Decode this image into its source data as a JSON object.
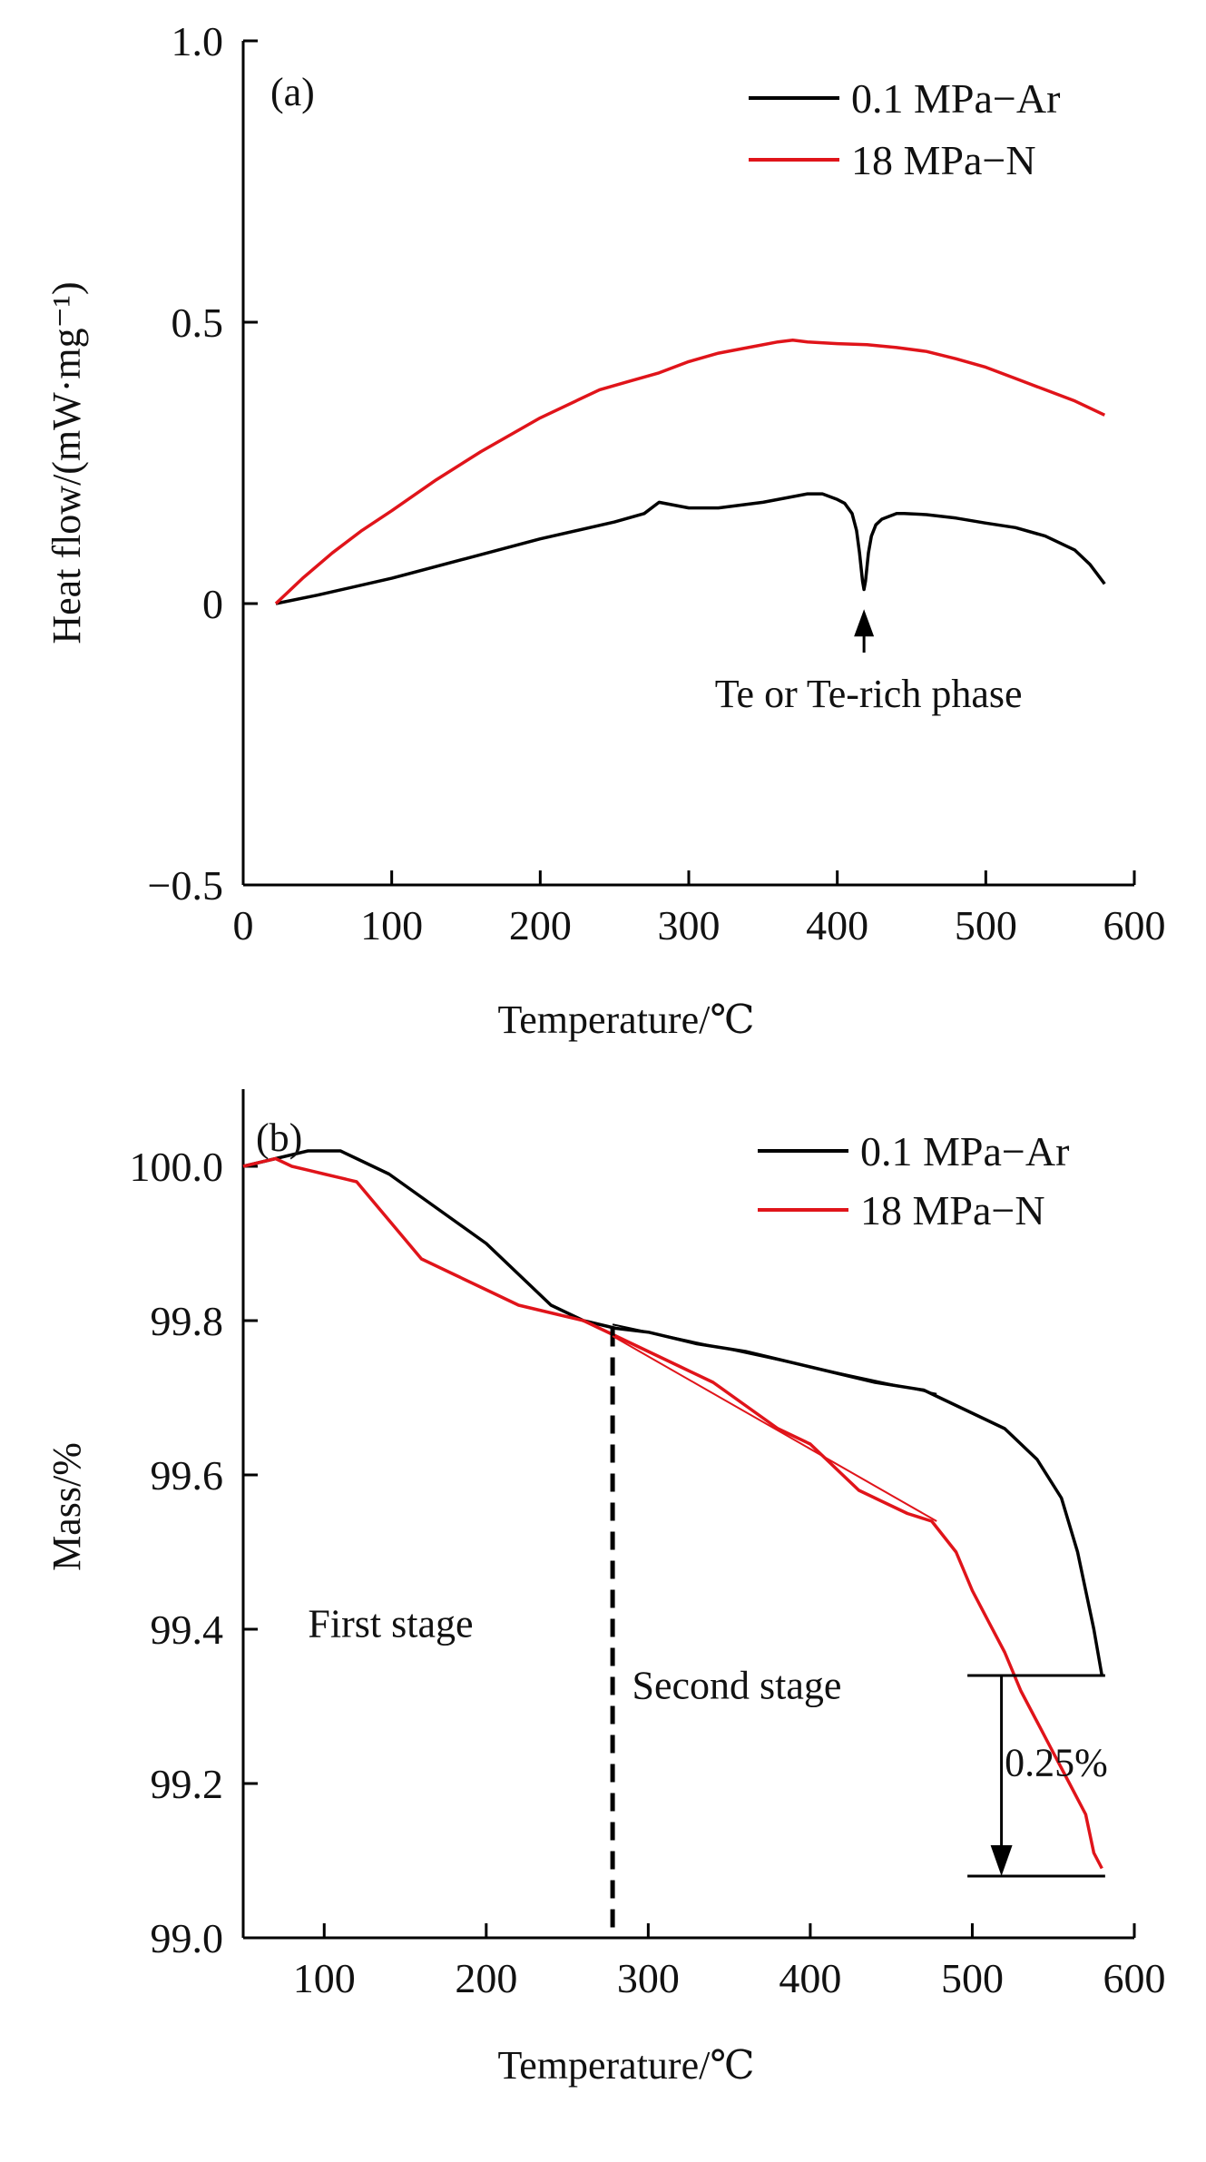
{
  "colors": {
    "series_ar": "#000000",
    "series_n": "#e0141a",
    "axis": "#000000"
  },
  "chart_data": [
    {
      "type": "line",
      "panel_label": "(a)",
      "xlabel": "Temperature/℃",
      "ylabel": "Heat flow/(mW·mg⁻¹)",
      "xlim": [
        0,
        600
      ],
      "ylim": [
        -0.5,
        1.0
      ],
      "x_ticks": [
        0,
        100,
        200,
        300,
        400,
        500,
        600
      ],
      "x_tick_labels": [
        "0",
        "100",
        "200",
        "300",
        "400",
        "500",
        "600"
      ],
      "y_ticks": [
        -0.5,
        0,
        0.5,
        1.0
      ],
      "y_tick_labels": [
        "−0.5",
        "0",
        "0.5",
        "1.0"
      ],
      "grid": false,
      "legend_position": "top-right",
      "series": [
        {
          "name": "0.1 MPa−Ar",
          "color": "#000000",
          "x": [
            22,
            50,
            100,
            150,
            200,
            250,
            270,
            280,
            290,
            300,
            320,
            350,
            380,
            390,
            400,
            405,
            410,
            413,
            415,
            417,
            418,
            419,
            421,
            423,
            426,
            430,
            435,
            440,
            445,
            460,
            480,
            500,
            520,
            540,
            560,
            570,
            580
          ],
          "y": [
            0.0,
            0.015,
            0.045,
            0.08,
            0.115,
            0.145,
            0.16,
            0.18,
            0.175,
            0.17,
            0.17,
            0.18,
            0.195,
            0.195,
            0.185,
            0.178,
            0.16,
            0.13,
            0.09,
            0.04,
            0.025,
            0.04,
            0.09,
            0.12,
            0.14,
            0.15,
            0.155,
            0.16,
            0.16,
            0.158,
            0.152,
            0.143,
            0.135,
            0.12,
            0.095,
            0.07,
            0.035
          ]
        },
        {
          "name": "18 MPa−N",
          "color": "#e0141a",
          "x": [
            22,
            40,
            60,
            80,
            100,
            130,
            160,
            200,
            240,
            260,
            280,
            300,
            320,
            340,
            360,
            370,
            380,
            400,
            420,
            440,
            460,
            480,
            500,
            520,
            540,
            560,
            580
          ],
          "y": [
            0.0,
            0.045,
            0.09,
            0.13,
            0.165,
            0.22,
            0.27,
            0.33,
            0.38,
            0.395,
            0.41,
            0.43,
            0.445,
            0.455,
            0.465,
            0.468,
            0.465,
            0.462,
            0.46,
            0.455,
            0.448,
            0.435,
            0.42,
            0.4,
            0.38,
            0.36,
            0.335
          ]
        }
      ],
      "annotations": [
        {
          "text": "Te or Te-rich phase",
          "x": 418,
          "y": -0.1,
          "arrow_to": [
            418,
            -0.01
          ]
        }
      ]
    },
    {
      "type": "line",
      "panel_label": "(b)",
      "xlabel": "Temperature/℃",
      "ylabel": "Mass/%",
      "xlim": [
        50,
        600
      ],
      "ylim": [
        99.0,
        100.1
      ],
      "x_ticks": [
        100,
        200,
        300,
        400,
        500,
        600
      ],
      "x_tick_labels": [
        "100",
        "200",
        "300",
        "400",
        "500",
        "600"
      ],
      "y_ticks": [
        99.0,
        99.2,
        99.4,
        99.6,
        99.8,
        100.0
      ],
      "y_tick_labels": [
        "99.0",
        "99.2",
        "99.4",
        "99.6",
        "99.8",
        "100.0"
      ],
      "grid": false,
      "legend_position": "top-right",
      "series": [
        {
          "name": "0.1 MPa−Ar",
          "color": "#000000",
          "x": [
            50,
            70,
            90,
            110,
            120,
            140,
            160,
            180,
            200,
            220,
            240,
            260,
            280,
            300,
            330,
            360,
            400,
            440,
            470,
            480,
            500,
            520,
            540,
            555,
            565,
            575,
            580
          ],
          "y": [
            100.0,
            100.01,
            100.02,
            100.02,
            100.01,
            99.99,
            99.96,
            99.93,
            99.9,
            99.86,
            99.82,
            99.8,
            99.79,
            99.785,
            99.77,
            99.76,
            99.74,
            99.72,
            99.71,
            99.7,
            99.68,
            99.66,
            99.62,
            99.57,
            99.5,
            99.4,
            99.34
          ]
        },
        {
          "name": "18 MPa−N",
          "color": "#e0141a",
          "x": [
            50,
            60,
            70,
            80,
            90,
            100,
            110,
            120,
            140,
            160,
            180,
            200,
            220,
            240,
            260,
            280,
            300,
            320,
            340,
            360,
            380,
            400,
            410,
            420,
            430,
            440,
            460,
            475,
            490,
            500,
            510,
            520,
            530,
            540,
            550,
            560,
            570,
            575,
            580
          ],
          "y": [
            100.0,
            100.005,
            100.01,
            100.0,
            99.995,
            99.99,
            99.985,
            99.98,
            99.93,
            99.88,
            99.86,
            99.84,
            99.82,
            99.81,
            99.8,
            99.78,
            99.76,
            99.74,
            99.72,
            99.69,
            99.66,
            99.64,
            99.62,
            99.6,
            99.58,
            99.57,
            99.55,
            99.54,
            99.5,
            99.45,
            99.41,
            99.37,
            99.32,
            99.28,
            99.24,
            99.2,
            99.16,
            99.11,
            99.09
          ]
        }
      ],
      "annotations": [
        {
          "text": "First stage",
          "x": 90,
          "y": 99.39
        },
        {
          "text": "Second stage",
          "x": 290,
          "y": 99.31
        },
        {
          "text": "0.25%",
          "x": 520,
          "y": 99.21
        }
      ],
      "stage_divider_x": 278
    }
  ]
}
